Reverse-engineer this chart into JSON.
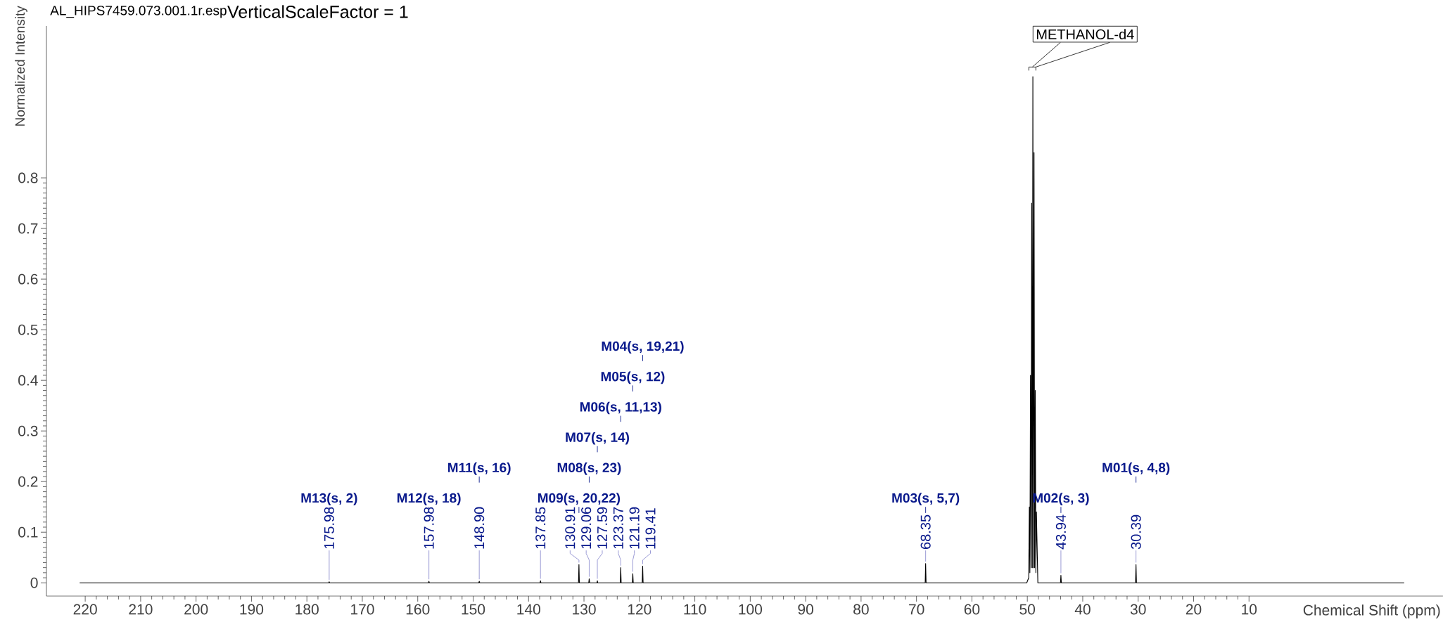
{
  "chart_data": {
    "type": "line",
    "title": "AL_HIPS7459.073.001.1r.esp",
    "subtitle": "VerticalScaleFactor = 1",
    "xlabel": "Chemical Shift (ppm)",
    "ylabel": "Normalized Intensity",
    "xlim": [
      227,
      -25
    ],
    "ylim": [
      -0.026,
      1.1
    ],
    "xticks": [
      220,
      210,
      200,
      190,
      180,
      170,
      160,
      150,
      140,
      130,
      120,
      110,
      100,
      90,
      80,
      70,
      60,
      50,
      40,
      30,
      20,
      10
    ],
    "yticks": [
      0,
      0.1,
      0.2,
      0.3,
      0.4,
      0.5,
      0.6,
      0.7,
      0.8
    ],
    "series": [
      {
        "color": "#000000",
        "x": [
          221,
          176.06,
          175.98,
          175.9,
          158.06,
          157.98,
          157.9,
          148.98,
          148.9,
          148.82,
          137.93,
          137.85,
          137.77,
          130.99,
          130.91,
          130.83,
          129.14,
          129.06,
          128.98,
          127.67,
          127.59,
          127.51,
          123.45,
          123.37,
          123.29,
          121.27,
          121.19,
          121.11,
          119.49,
          119.41,
          119.33,
          68.43,
          68.35,
          68.27,
          50.1,
          49.75,
          49.64,
          49.54,
          49.43,
          49.32,
          49.21,
          49.1,
          49.0,
          48.9,
          48.79,
          48.68,
          48.57,
          48.46,
          48.36,
          48.1,
          44.02,
          43.94,
          43.86,
          30.47,
          30.39,
          30.31,
          -18
        ],
        "values": [
          0,
          0,
          0.002,
          0,
          0,
          0.003,
          0,
          0,
          0.003,
          0,
          0,
          0.004,
          0,
          0,
          0.036,
          0,
          0,
          0.008,
          0,
          0,
          0.004,
          0,
          0,
          0.03,
          0,
          0,
          0.018,
          0,
          0,
          0.033,
          0,
          0,
          0.038,
          0,
          0,
          0.01,
          0.15,
          0.02,
          0.41,
          0.03,
          0.75,
          0.03,
          1.0,
          0.03,
          0.85,
          0.03,
          0.38,
          0.02,
          0.14,
          0,
          0,
          0.015,
          0,
          0,
          0.036,
          0,
          0
        ]
      }
    ],
    "annotations": [
      {
        "text": "175.98",
        "x": 175.98,
        "y": 0.002
      },
      {
        "text": "157.98",
        "x": 157.98,
        "y": 0.003
      },
      {
        "text": "148.90",
        "x": 148.9,
        "y": 0.003
      },
      {
        "text": "137.85",
        "x": 137.85,
        "y": 0.004
      },
      {
        "text": "130.91",
        "x": 130.91,
        "y": 0.036
      },
      {
        "text": "129.06",
        "x": 129.06,
        "y": 0.008
      },
      {
        "text": "127.59",
        "x": 127.59,
        "y": 0.004
      },
      {
        "text": "123.37",
        "x": 123.37,
        "y": 0.03
      },
      {
        "text": "121.19",
        "x": 121.19,
        "y": 0.018
      },
      {
        "text": "119.41",
        "x": 119.41,
        "y": 0.033
      },
      {
        "text": "68.35",
        "x": 68.35,
        "y": 0.038
      },
      {
        "text": "43.94",
        "x": 43.94,
        "y": 0.015
      },
      {
        "text": "30.39",
        "x": 30.39,
        "y": 0.036
      },
      {
        "text": "M13(s, 2)",
        "x": 175.98
      },
      {
        "text": "M12(s, 18)",
        "x": 157.98
      },
      {
        "text": "M11(s, 16)",
        "x": 148.9
      },
      {
        "text": "M09(s, 20,22)",
        "x": 130.91
      },
      {
        "text": "M08(s, 23)",
        "x": 129.06
      },
      {
        "text": "M07(s, 14)",
        "x": 127.59
      },
      {
        "text": "M06(s, 11,13)",
        "x": 123.37
      },
      {
        "text": "M05(s, 12)",
        "x": 121.19
      },
      {
        "text": "M04(s, 19,21)",
        "x": 119.41
      },
      {
        "text": "M03(s, 5,7)",
        "x": 68.35
      },
      {
        "text": "M02(s, 3)",
        "x": 43.94
      },
      {
        "text": "M01(s, 4,8)",
        "x": 30.39
      },
      {
        "text": "METHANOL-d4",
        "x": 49.1,
        "y": 1.0
      }
    ]
  }
}
